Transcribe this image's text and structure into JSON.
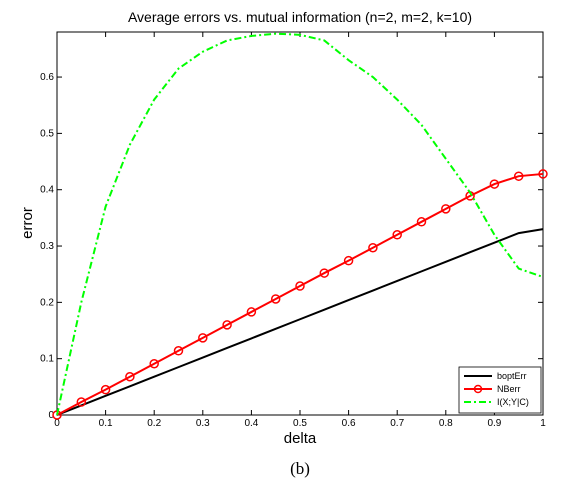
{
  "chart_data": {
    "type": "line",
    "title": "Average errors vs. mutual information  (n=2, m=2, k=10)",
    "xlabel": "delta",
    "ylabel": "error",
    "caption": "(b)",
    "xlim": [
      0,
      1
    ],
    "ylim": [
      0,
      0.68
    ],
    "xticks": [
      0,
      0.1,
      0.2,
      0.3,
      0.4,
      0.5,
      0.6,
      0.7,
      0.8,
      0.9,
      1
    ],
    "xtick_labels": [
      "0",
      "0.1",
      "0.2",
      "0.3",
      "0.4",
      "0.5",
      "0.6",
      "0.7",
      "0.8",
      "0.9",
      "1"
    ],
    "yticks": [
      0,
      0.1,
      0.2,
      0.3,
      0.4,
      0.5,
      0.6
    ],
    "ytick_labels": [
      "0",
      "0.1",
      "0.2",
      "0.3",
      "0.4",
      "0.5",
      "0.6"
    ],
    "grid": false,
    "legend_position": "bottom-right",
    "series": [
      {
        "name": "boptErr",
        "color": "#000000",
        "style": "solid",
        "marker": "none",
        "x": [
          0,
          0.05,
          0.1,
          0.15,
          0.2,
          0.25,
          0.3,
          0.35,
          0.4,
          0.45,
          0.5,
          0.55,
          0.6,
          0.65,
          0.7,
          0.75,
          0.8,
          0.85,
          0.9,
          0.95,
          1
        ],
        "y": [
          0,
          0.017,
          0.034,
          0.051,
          0.068,
          0.085,
          0.102,
          0.119,
          0.136,
          0.153,
          0.17,
          0.187,
          0.204,
          0.221,
          0.238,
          0.255,
          0.272,
          0.289,
          0.306,
          0.323,
          0.33
        ]
      },
      {
        "name": "NBerr",
        "color": "#ff0000",
        "style": "solid",
        "marker": "circle",
        "x": [
          0,
          0.05,
          0.1,
          0.15,
          0.2,
          0.25,
          0.3,
          0.35,
          0.4,
          0.45,
          0.5,
          0.55,
          0.6,
          0.65,
          0.7,
          0.75,
          0.8,
          0.85,
          0.9,
          0.95,
          1
        ],
        "y": [
          0,
          0.023,
          0.045,
          0.068,
          0.091,
          0.114,
          0.137,
          0.16,
          0.183,
          0.206,
          0.229,
          0.252,
          0.274,
          0.297,
          0.32,
          0.343,
          0.366,
          0.389,
          0.41,
          0.424,
          0.428
        ]
      },
      {
        "name": "I(X;Y|C)",
        "color": "#00ff00",
        "style": "dashdot",
        "marker": "none",
        "x": [
          0,
          0.05,
          0.1,
          0.15,
          0.2,
          0.25,
          0.3,
          0.35,
          0.4,
          0.45,
          0.5,
          0.55,
          0.6,
          0.65,
          0.7,
          0.75,
          0.8,
          0.85,
          0.9,
          0.95,
          1
        ],
        "y": [
          0,
          0.2,
          0.37,
          0.48,
          0.56,
          0.615,
          0.645,
          0.665,
          0.673,
          0.677,
          0.675,
          0.665,
          0.63,
          0.6,
          0.56,
          0.515,
          0.455,
          0.395,
          0.32,
          0.26,
          0.245
        ]
      }
    ]
  }
}
